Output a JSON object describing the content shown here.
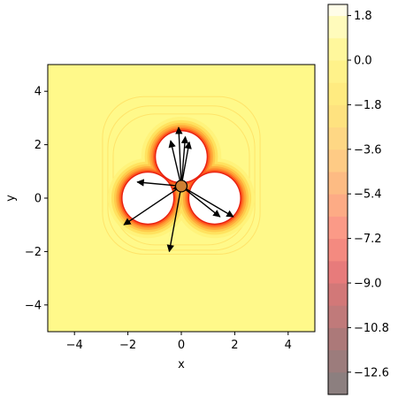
{
  "chart_data": {
    "type": "heatmap",
    "subtype": "filled-contour with quiver arrows",
    "xlabel": "x",
    "ylabel": "y",
    "xlim": [
      -5,
      5
    ],
    "ylim": [
      -5,
      5
    ],
    "xticks": [
      -4,
      -2,
      0,
      2,
      4
    ],
    "yticks": [
      -4,
      -2,
      0,
      2,
      4
    ],
    "colormap": "hot (semi-transparent)",
    "colorbar": {
      "range": [
        -13.5,
        2.25
      ],
      "levels": [
        -13.5,
        -12.6,
        -11.7,
        -10.8,
        -9.9,
        -9.0,
        -8.1,
        -7.2,
        -6.3,
        -5.4,
        -4.5,
        -3.6,
        -2.7,
        -1.8,
        -0.9,
        0.0,
        0.9,
        1.8,
        2.25
      ],
      "tick_values": [
        -12.6,
        -10.8,
        -9.0,
        -7.2,
        -5.4,
        -3.6,
        -1.8,
        0.0,
        1.8
      ],
      "tick_labels": [
        "−12.6",
        "−10.8",
        "−9.0",
        "−7.2",
        "−5.4",
        "−3.6",
        "−1.8",
        "0.0",
        "1.8"
      ],
      "band_colors": [
        "#8c7f7f",
        "#9c7c7c",
        "#ac7979",
        "#c07a7a",
        "#d27878",
        "#e77b7b",
        "#f48a80",
        "#fb9a87",
        "#fdab85",
        "#fdbb83",
        "#fecb85",
        "#fed784",
        "#fee27f",
        "#ffeb80",
        "#fff28a",
        "#fff79c",
        "#fffbbb",
        "#fffde8"
      ]
    },
    "field": {
      "background_value": -1.2,
      "lobes": [
        {
          "center": [
            0,
            1.55
          ],
          "radius": 0.95
        },
        {
          "center": [
            -1.25,
            0.0
          ],
          "radius": 0.95
        },
        {
          "center": [
            1.25,
            0.0
          ],
          "radius": 0.95
        }
      ],
      "outer_contours": [
        {
          "center": [
            0,
            0.85
          ],
          "half_width": 2.95,
          "half_height": 2.95
        },
        {
          "center": [
            0,
            0.75
          ],
          "half_width": 2.75,
          "half_height": 2.7
        },
        {
          "center": [
            0,
            0.7
          ],
          "half_width": 2.55,
          "half_height": 2.45
        }
      ]
    },
    "particle": {
      "position": [
        0.0,
        0.45
      ],
      "color": "#cd7f32"
    },
    "arrows": [
      {
        "from": [
          0.0,
          0.45
        ],
        "to": [
          -0.1,
          2.65
        ]
      },
      {
        "from": [
          0.0,
          0.45
        ],
        "to": [
          0.15,
          2.3
        ]
      },
      {
        "from": [
          0.0,
          0.45
        ],
        "to": [
          0.3,
          2.1
        ]
      },
      {
        "from": [
          0.0,
          0.45
        ],
        "to": [
          -0.4,
          2.15
        ]
      },
      {
        "from": [
          0.0,
          0.45
        ],
        "to": [
          -1.65,
          0.6
        ]
      },
      {
        "from": [
          0.0,
          0.45
        ],
        "to": [
          -0.3,
          0.35
        ]
      },
      {
        "from": [
          0.0,
          0.45
        ],
        "to": [
          -2.15,
          -1.0
        ]
      },
      {
        "from": [
          0.0,
          0.45
        ],
        "to": [
          -0.45,
          -2.0
        ]
      },
      {
        "from": [
          0.0,
          0.45
        ],
        "to": [
          1.45,
          -0.7
        ]
      },
      {
        "from": [
          0.0,
          0.45
        ],
        "to": [
          1.95,
          -0.7
        ]
      }
    ]
  }
}
